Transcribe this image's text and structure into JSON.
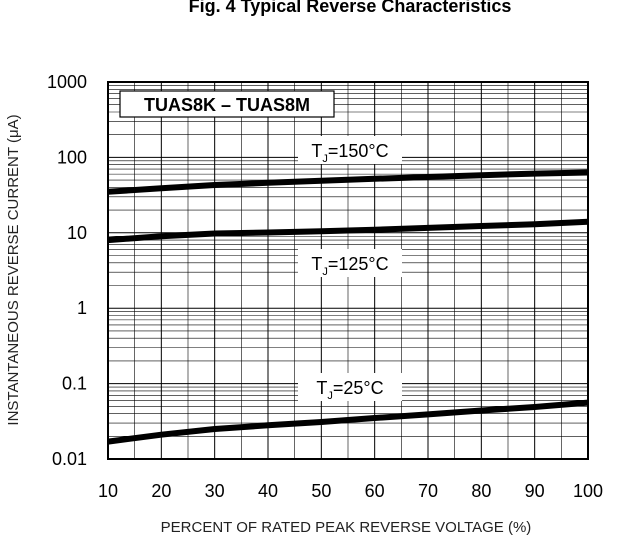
{
  "chart_data": {
    "type": "line",
    "title": "Fig. 4 Typical Reverse Characteristics",
    "box_label": "TUAS8K – TUAS8M",
    "xlabel": "PERCENT OF RATED PEAK REVERSE VOLTAGE (%)",
    "ylabel": "INSTANTANEOUS REVERSE CURRENT (μA)",
    "xlim": [
      10,
      100
    ],
    "ylim": [
      0.01,
      1000
    ],
    "y_scale": "log",
    "x_ticks": [
      "10",
      "20",
      "30",
      "40",
      "50",
      "60",
      "70",
      "80",
      "90",
      "100"
    ],
    "y_ticks": [
      "0.01",
      "0.1",
      "1",
      "10",
      "100",
      "1000"
    ],
    "grid": true,
    "series": [
      {
        "name": "TJ=150°C",
        "label_main": "T",
        "label_sub": "J",
        "label_rest": "=150°C",
        "x": [
          10,
          20,
          30,
          40,
          50,
          60,
          70,
          80,
          90,
          100
        ],
        "y": [
          35,
          39,
          43,
          46,
          49,
          52,
          55,
          58,
          61,
          63
        ]
      },
      {
        "name": "TJ=125°C",
        "label_main": "T",
        "label_sub": "J",
        "label_rest": "=125°C",
        "x": [
          10,
          20,
          30,
          40,
          50,
          60,
          70,
          80,
          90,
          100
        ],
        "y": [
          8,
          9,
          9.8,
          10.1,
          10.5,
          11,
          11.6,
          12.3,
          13,
          14
        ]
      },
      {
        "name": "TJ=25°C",
        "label_main": "T",
        "label_sub": "J",
        "label_rest": "=25°C",
        "x": [
          10,
          20,
          30,
          40,
          50,
          60,
          70,
          80,
          90,
          100
        ],
        "y": [
          0.017,
          0.021,
          0.025,
          0.028,
          0.031,
          0.035,
          0.039,
          0.044,
          0.049,
          0.056
        ]
      }
    ]
  }
}
